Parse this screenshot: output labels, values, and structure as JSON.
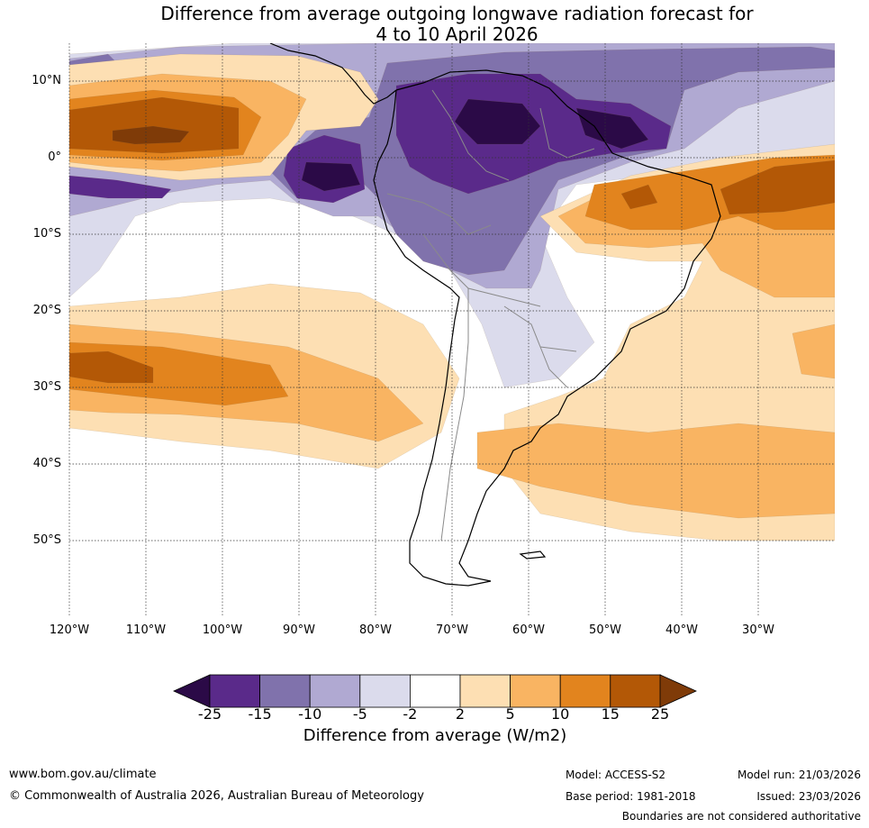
{
  "title": {
    "line1": "Difference from average outgoing longwave radiation forecast for",
    "line2": "4 to 10 April 2026"
  },
  "map": {
    "lat_labels": [
      "10°N",
      "0°",
      "10°S",
      "20°S",
      "30°S",
      "40°S",
      "50°S"
    ],
    "lon_labels": [
      "120°W",
      "110°W",
      "100°W",
      "90°W",
      "80°W",
      "70°W",
      "60°W",
      "50°W",
      "40°W",
      "30°W"
    ],
    "colors": {
      "lt-25": "#2b0a47",
      "-25to-15": "#5a2a8a",
      "-15to-10": "#8072ac",
      "-10to-5": "#b0a9d2",
      "-5to-2": "#dbdbec",
      "-2to2": "#ffffff",
      "2to5": "#fddfb3",
      "5to10": "#f9b462",
      "10to15": "#e2841e",
      "15to25": "#b35806",
      "gt25": "#7f3b08"
    },
    "anomaly_units": "W/m2"
  },
  "colorbar": {
    "ticks": [
      "-25",
      "-15",
      "-10",
      "-5",
      "-2",
      "2",
      "5",
      "10",
      "15",
      "25"
    ],
    "label": "Difference from average (W/m2)",
    "colors": [
      "#2b0a47",
      "#5a2a8a",
      "#8072ac",
      "#b0a9d2",
      "#dbdbec",
      "#ffffff",
      "#fddfb3",
      "#f9b462",
      "#e2841e",
      "#b35806",
      "#7f3b08"
    ]
  },
  "footer": {
    "website": "www.bom.gov.au/climate",
    "copyright": "© Commonwealth of Australia 2026, Australian Bureau of Meteorology",
    "model": "Model: ACCESS-S2",
    "base_period": "Base period: 1981-2018",
    "model_run": "Model run: 21/03/2026",
    "issued": "Issued: 23/03/2026",
    "disclaimer": "Boundaries are not considered authoritative"
  }
}
